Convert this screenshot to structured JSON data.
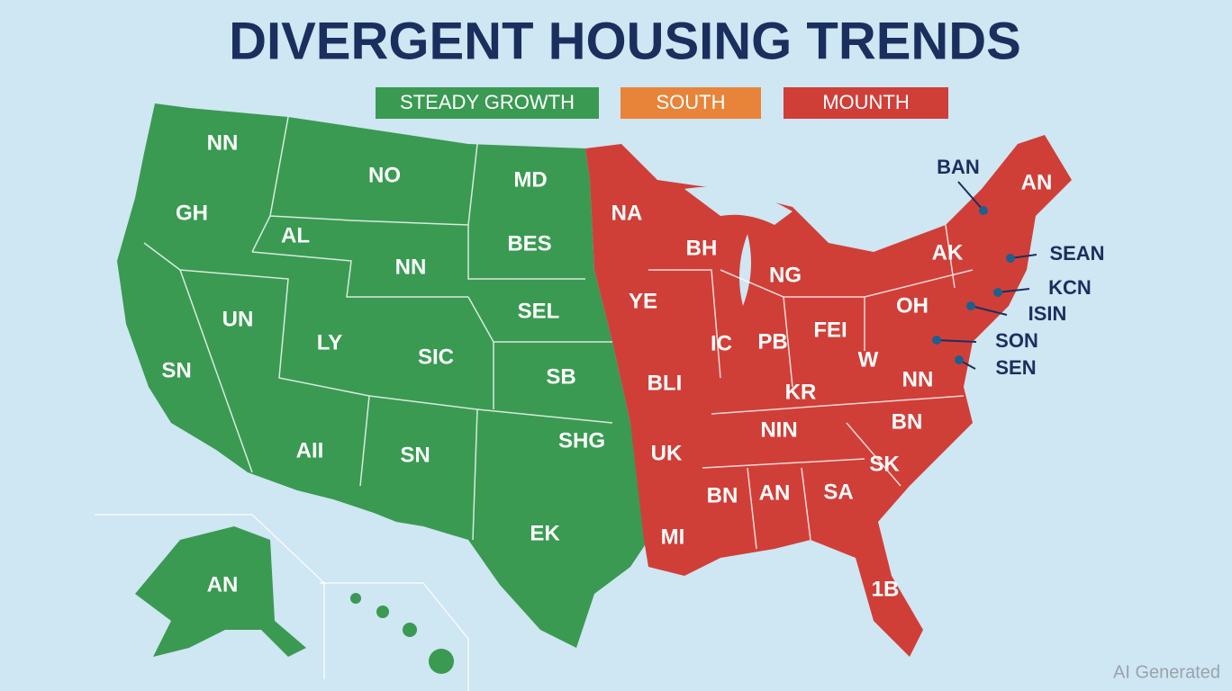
{
  "title": "DIVERGENT HOUSING TRENDS",
  "legend": [
    {
      "label": "STEADY GROWTH",
      "color": "#3a9a52"
    },
    {
      "label": "SOUTH",
      "color": "#e8843a"
    },
    {
      "label": "MOUNTH",
      "color": "#cf3f38"
    }
  ],
  "map": {
    "green_regions": [
      "NN",
      "NO",
      "MD",
      "GH",
      "AL",
      "BES",
      "NN",
      "UN",
      "SEL",
      "LY",
      "SIC",
      "SN",
      "SB",
      "AII",
      "SN",
      "SHG",
      "EK",
      "AN"
    ],
    "red_regions": [
      "AN",
      "NA",
      "BH",
      "AK",
      "NG",
      "YE",
      "OH",
      "FEI",
      "PB",
      "IC",
      "W",
      "KR",
      "BLI",
      "NN",
      "NIN",
      "BN",
      "UK",
      "SK",
      "BN",
      "AN",
      "SA",
      "MI",
      "1B"
    ],
    "callouts": [
      "BAN",
      "SEAN",
      "KCN",
      "ISIN",
      "SON",
      "SEN"
    ]
  },
  "watermark": "AI Generated"
}
